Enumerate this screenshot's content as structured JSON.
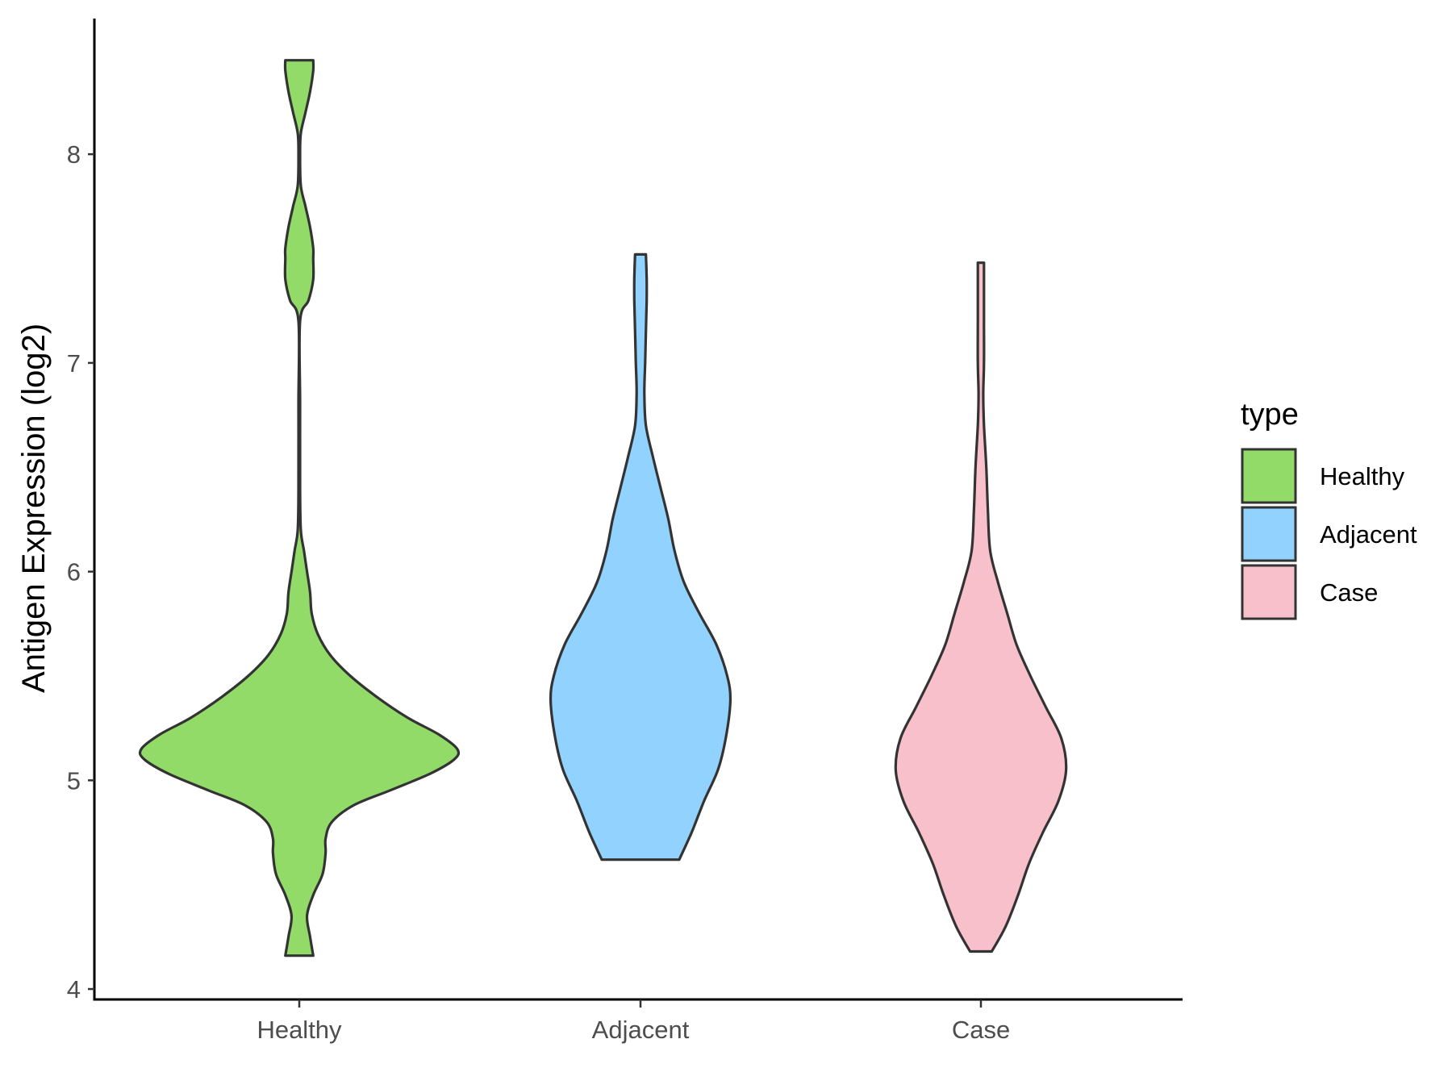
{
  "chart_data": {
    "type": "violin",
    "title": "",
    "xlabel": "",
    "ylabel": "Antigen Expression (log2)",
    "ylim": [
      3.95,
      8.65
    ],
    "yticks": [
      4,
      5,
      6,
      7,
      8
    ],
    "categories": [
      "Healthy",
      "Adjacent",
      "Case"
    ],
    "legend": {
      "title": "type",
      "position": "right",
      "entries": [
        "Healthy",
        "Adjacent",
        "Case"
      ]
    },
    "colors": {
      "Healthy": "#93DB69",
      "Adjacent": "#92D2FE",
      "Case": "#F8C0CB"
    },
    "series": [
      {
        "name": "Healthy",
        "min": 4.16,
        "max": 8.45,
        "profile": [
          [
            4.16,
            0.09
          ],
          [
            4.25,
            0.07
          ],
          [
            4.35,
            0.05
          ],
          [
            4.45,
            0.09
          ],
          [
            4.55,
            0.15
          ],
          [
            4.65,
            0.17
          ],
          [
            4.72,
            0.17
          ],
          [
            4.8,
            0.21
          ],
          [
            4.88,
            0.35
          ],
          [
            4.95,
            0.58
          ],
          [
            5.03,
            0.84
          ],
          [
            5.1,
            1.0
          ],
          [
            5.15,
            1.02
          ],
          [
            5.22,
            0.9
          ],
          [
            5.3,
            0.7
          ],
          [
            5.4,
            0.5
          ],
          [
            5.5,
            0.33
          ],
          [
            5.6,
            0.2
          ],
          [
            5.7,
            0.12
          ],
          [
            5.8,
            0.08
          ],
          [
            5.9,
            0.07
          ],
          [
            6.0,
            0.05
          ],
          [
            6.1,
            0.03
          ],
          [
            6.2,
            0.01
          ],
          [
            6.4,
            0.005
          ],
          [
            6.8,
            0.005
          ],
          [
            7.2,
            0.005
          ],
          [
            7.3,
            0.06
          ],
          [
            7.4,
            0.09
          ],
          [
            7.5,
            0.09
          ],
          [
            7.55,
            0.09
          ],
          [
            7.65,
            0.07
          ],
          [
            7.75,
            0.04
          ],
          [
            7.85,
            0.01
          ],
          [
            8.0,
            0.005
          ],
          [
            8.1,
            0.01
          ],
          [
            8.2,
            0.04
          ],
          [
            8.3,
            0.07
          ],
          [
            8.4,
            0.09
          ],
          [
            8.45,
            0.09
          ]
        ]
      },
      {
        "name": "Adjacent",
        "min": 4.62,
        "max": 7.52,
        "profile": [
          [
            4.62,
            0.25
          ],
          [
            4.75,
            0.33
          ],
          [
            4.9,
            0.41
          ],
          [
            5.05,
            0.5
          ],
          [
            5.2,
            0.55
          ],
          [
            5.38,
            0.58
          ],
          [
            5.5,
            0.56
          ],
          [
            5.65,
            0.49
          ],
          [
            5.8,
            0.38
          ],
          [
            5.95,
            0.28
          ],
          [
            6.1,
            0.22
          ],
          [
            6.25,
            0.18
          ],
          [
            6.4,
            0.13
          ],
          [
            6.55,
            0.08
          ],
          [
            6.7,
            0.035
          ],
          [
            6.85,
            0.025
          ],
          [
            7.0,
            0.03
          ],
          [
            7.15,
            0.035
          ],
          [
            7.3,
            0.04
          ],
          [
            7.4,
            0.04
          ],
          [
            7.52,
            0.035
          ]
        ]
      },
      {
        "name": "Case",
        "min": 4.18,
        "max": 7.48,
        "profile": [
          [
            4.18,
            0.07
          ],
          [
            4.3,
            0.16
          ],
          [
            4.45,
            0.24
          ],
          [
            4.6,
            0.31
          ],
          [
            4.75,
            0.4
          ],
          [
            4.9,
            0.5
          ],
          [
            5.05,
            0.55
          ],
          [
            5.2,
            0.52
          ],
          [
            5.35,
            0.42
          ],
          [
            5.5,
            0.32
          ],
          [
            5.65,
            0.23
          ],
          [
            5.8,
            0.17
          ],
          [
            5.95,
            0.11
          ],
          [
            6.1,
            0.06
          ],
          [
            6.3,
            0.045
          ],
          [
            6.5,
            0.035
          ],
          [
            6.7,
            0.02
          ],
          [
            6.85,
            0.015
          ],
          [
            7.0,
            0.02
          ],
          [
            7.2,
            0.02
          ],
          [
            7.4,
            0.02
          ],
          [
            7.48,
            0.02
          ]
        ]
      }
    ]
  }
}
